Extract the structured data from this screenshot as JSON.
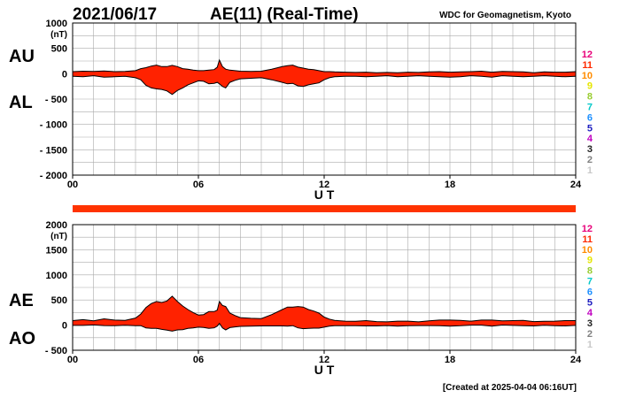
{
  "header": {
    "date": "2021/06/17",
    "title": "AE(11) (Real-Time)",
    "source": "WDC for Geomagnetism, Kyoto"
  },
  "footer": {
    "created": "[Created at 2025-04-04 06:16UT]"
  },
  "colors": {
    "fill": "#ff2200",
    "grid": "#aaaaaa",
    "frame": "#000000",
    "bar": "#ff3300"
  },
  "station_counts": [
    {
      "label": "12",
      "color": "#e8007a"
    },
    {
      "label": "11",
      "color": "#ff2a00"
    },
    {
      "label": "10",
      "color": "#ff8c00"
    },
    {
      "label": "9",
      "color": "#e6e600"
    },
    {
      "label": "8",
      "color": "#9acd32"
    },
    {
      "label": "7",
      "color": "#00c8c8"
    },
    {
      "label": "6",
      "color": "#1e90ff"
    },
    {
      "label": "5",
      "color": "#2020c0"
    },
    {
      "label": "4",
      "color": "#c000c0"
    },
    {
      "label": "3",
      "color": "#222222"
    },
    {
      "label": "2",
      "color": "#808080"
    },
    {
      "label": "1",
      "color": "#c8c8c8"
    }
  ],
  "chart_data": [
    {
      "type": "area",
      "panel": "AU/AL",
      "series_labels": [
        "AU",
        "AL"
      ],
      "xlabel": "U T",
      "ylabel": "(nT)",
      "xlim": [
        0,
        24
      ],
      "ylim": [
        -2000,
        1000
      ],
      "xticks": [
        "00",
        "06",
        "12",
        "18",
        "24"
      ],
      "yticks": [
        "1000",
        "500",
        "0",
        "- 500",
        "- 1000",
        "- 1500",
        "- 2000"
      ],
      "ytick_values": [
        1000,
        500,
        0,
        -500,
        -1000,
        -1500,
        -2000
      ],
      "grid": true,
      "x": [
        0,
        0.5,
        1,
        1.5,
        2,
        2.5,
        3,
        3.25,
        3.5,
        3.75,
        4,
        4.25,
        4.5,
        4.75,
        5,
        5.25,
        5.5,
        5.75,
        6,
        6.25,
        6.5,
        6.75,
        6.9,
        7,
        7.15,
        7.3,
        7.5,
        7.75,
        8,
        8.5,
        9,
        9.5,
        10,
        10.25,
        10.5,
        10.75,
        11,
        11.25,
        11.5,
        11.75,
        12,
        12.25,
        12.5,
        13,
        13.5,
        14,
        14.5,
        15,
        15.5,
        16,
        16.5,
        17,
        17.5,
        18,
        18.5,
        19,
        19.5,
        20,
        20.5,
        21,
        21.5,
        22,
        22.5,
        23,
        23.5,
        24
      ],
      "au": [
        40,
        50,
        45,
        55,
        40,
        45,
        60,
        100,
        120,
        150,
        170,
        140,
        140,
        165,
        140,
        100,
        90,
        70,
        60,
        60,
        70,
        80,
        130,
        270,
        140,
        90,
        70,
        60,
        50,
        45,
        50,
        90,
        140,
        160,
        170,
        130,
        110,
        90,
        80,
        60,
        40,
        40,
        35,
        30,
        25,
        30,
        20,
        25,
        20,
        30,
        25,
        35,
        40,
        30,
        35,
        40,
        50,
        30,
        45,
        40,
        35,
        20,
        35,
        30,
        30,
        40
      ],
      "al": [
        -50,
        -60,
        -40,
        -70,
        -60,
        -50,
        -80,
        -120,
        -230,
        -280,
        -300,
        -310,
        -340,
        -410,
        -330,
        -280,
        -220,
        -180,
        -140,
        -150,
        -200,
        -190,
        -170,
        -200,
        -250,
        -280,
        -170,
        -130,
        -100,
        -90,
        -80,
        -120,
        -170,
        -200,
        -190,
        -240,
        -250,
        -220,
        -200,
        -180,
        -120,
        -80,
        -60,
        -50,
        -50,
        -60,
        -50,
        -40,
        -60,
        -50,
        -40,
        -50,
        -60,
        -70,
        -60,
        -40,
        -50,
        -70,
        -40,
        -50,
        -60,
        -50,
        -40,
        -50,
        -60,
        -50
      ]
    },
    {
      "type": "area",
      "panel": "AE/AO",
      "series_labels": [
        "AE",
        "AO"
      ],
      "xlabel": "U T",
      "ylabel": "(nT)",
      "xlim": [
        0,
        24
      ],
      "ylim": [
        -500,
        2000
      ],
      "xticks": [
        "00",
        "06",
        "12",
        "18",
        "24"
      ],
      "yticks": [
        "2000",
        "1500",
        "1000",
        "500",
        "0",
        "- 500"
      ],
      "ytick_values": [
        2000,
        1500,
        1000,
        500,
        0,
        -500
      ],
      "grid": true,
      "x": [
        0,
        0.5,
        1,
        1.5,
        2,
        2.5,
        3,
        3.25,
        3.5,
        3.75,
        4,
        4.25,
        4.5,
        4.75,
        5,
        5.25,
        5.5,
        5.75,
        6,
        6.25,
        6.5,
        6.75,
        6.9,
        7,
        7.15,
        7.3,
        7.5,
        7.75,
        8,
        8.5,
        9,
        9.5,
        10,
        10.25,
        10.5,
        10.75,
        11,
        11.25,
        11.5,
        11.75,
        12,
        12.25,
        12.5,
        13,
        13.5,
        14,
        14.5,
        15,
        15.5,
        16,
        16.5,
        17,
        17.5,
        18,
        18.5,
        19,
        19.5,
        20,
        20.5,
        21,
        21.5,
        22,
        22.5,
        23,
        23.5,
        24
      ],
      "ae": [
        90,
        110,
        85,
        125,
        100,
        95,
        140,
        220,
        350,
        430,
        470,
        450,
        480,
        575,
        470,
        380,
        310,
        250,
        200,
        210,
        270,
        270,
        300,
        470,
        390,
        370,
        240,
        190,
        150,
        135,
        130,
        210,
        310,
        360,
        360,
        370,
        360,
        310,
        280,
        240,
        160,
        120,
        95,
        80,
        75,
        90,
        70,
        65,
        80,
        80,
        65,
        85,
        100,
        100,
        95,
        80,
        100,
        100,
        85,
        90,
        95,
        70,
        75,
        80,
        90,
        90
      ],
      "ao": [
        -5,
        -5,
        3,
        -8,
        -10,
        -3,
        -10,
        -10,
        -55,
        -65,
        -65,
        -85,
        -100,
        -120,
        -95,
        -90,
        -65,
        -55,
        -40,
        -45,
        -65,
        -55,
        -20,
        35,
        -55,
        -95,
        -50,
        -35,
        -25,
        -22,
        -15,
        -15,
        -15,
        -20,
        -10,
        -55,
        -70,
        -65,
        -60,
        -60,
        -40,
        -20,
        -12,
        -10,
        -12,
        -15,
        -15,
        -8,
        -20,
        -10,
        -8,
        -8,
        -10,
        -20,
        -12,
        0,
        0,
        -20,
        2,
        -5,
        -12,
        -15,
        -2,
        -10,
        -15,
        -5
      ]
    }
  ]
}
